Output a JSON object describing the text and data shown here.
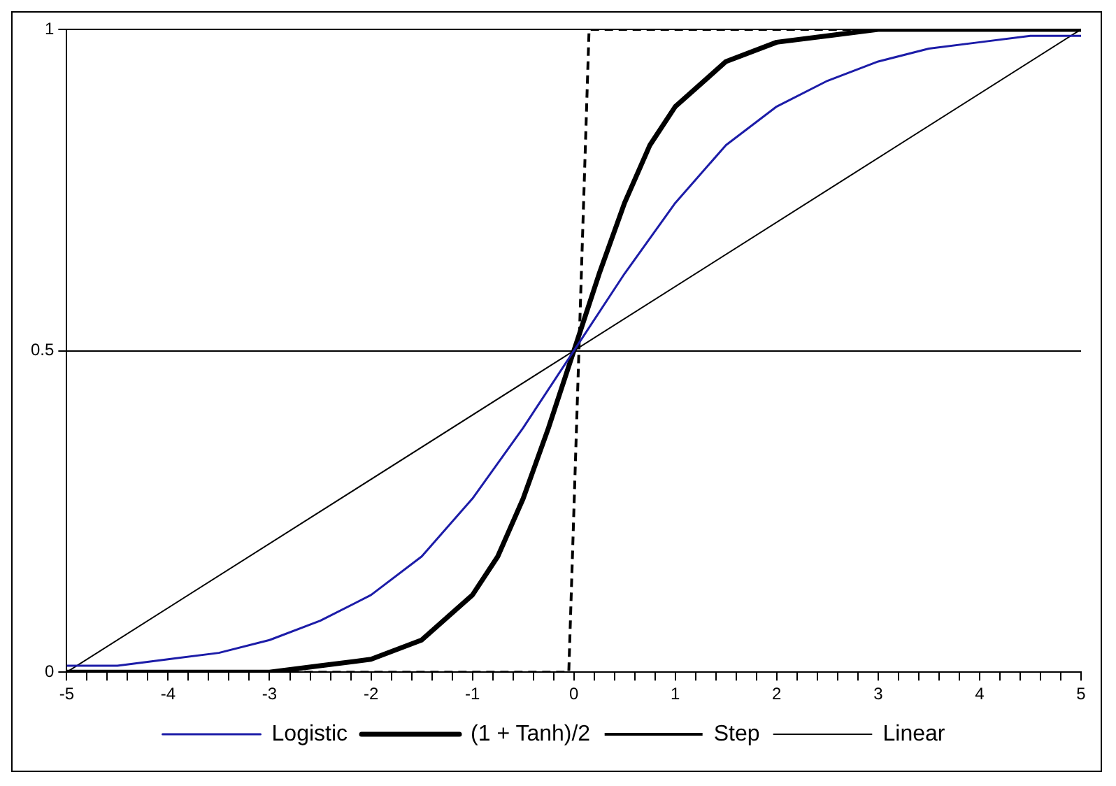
{
  "chart_data": {
    "type": "line",
    "legend": "bottom",
    "grid": "y",
    "marker": "none",
    "xlim": [
      -5,
      5
    ],
    "ylim": [
      0,
      1
    ],
    "yticks": [
      0,
      0.5,
      1
    ],
    "xticks": [
      -5,
      {
        "value": -4.8,
        "label": null
      },
      {
        "value": -4.6,
        "label": null
      },
      {
        "value": -4.4,
        "label": null
      },
      {
        "value": -4.2,
        "label": null
      },
      -4,
      {
        "value": -3.8,
        "label": null
      },
      {
        "value": -3.6,
        "label": null
      },
      {
        "value": -3.4,
        "label": null
      },
      {
        "value": -3.2,
        "label": null
      },
      -3,
      {
        "value": -2.8,
        "label": null
      },
      {
        "value": -2.6,
        "label": null
      },
      {
        "value": -2.4,
        "label": null
      },
      {
        "value": -2.2,
        "label": null
      },
      -2,
      {
        "value": -1.8,
        "label": null
      },
      {
        "value": -1.6,
        "label": null
      },
      {
        "value": -1.4,
        "label": null
      },
      {
        "value": -1.2,
        "label": null
      },
      -1,
      {
        "value": -0.8,
        "label": null
      },
      {
        "value": -0.6,
        "label": null
      },
      {
        "value": -0.4,
        "label": null
      },
      {
        "value": -0.2,
        "label": null
      },
      0,
      {
        "value": 0.2,
        "label": null
      },
      {
        "value": 0.4,
        "label": null
      },
      {
        "value": 0.6,
        "label": null
      },
      {
        "value": 0.8,
        "label": null
      },
      1,
      {
        "value": 1.2,
        "label": null
      },
      {
        "value": 1.4,
        "label": null
      },
      {
        "value": 1.6,
        "label": null
      },
      {
        "value": 1.8,
        "label": null
      },
      2,
      {
        "value": 2.2,
        "label": null
      },
      {
        "value": 2.4,
        "label": null
      },
      {
        "value": 2.6,
        "label": null
      },
      {
        "value": 2.8,
        "label": null
      },
      3,
      {
        "value": 3.2,
        "label": null
      },
      {
        "value": 3.4,
        "label": null
      },
      {
        "value": 3.6,
        "label": null
      },
      {
        "value": 3.8,
        "label": null
      },
      4,
      {
        "value": 4.2,
        "label": null
      },
      {
        "value": 4.4,
        "label": null
      },
      {
        "value": 4.6,
        "label": null
      },
      {
        "value": 4.8,
        "label": null
      },
      5
    ],
    "series": [
      {
        "name": "Logistic",
        "color": "#1c1ca8",
        "line_style": "solid",
        "x": [
          -5,
          -4.5,
          -4,
          -3.5,
          -3,
          -2.5,
          -2,
          -1.5,
          -1,
          -0.5,
          0,
          0.5,
          1,
          1.5,
          2,
          2.5,
          3,
          3.5,
          4,
          4.5,
          5
        ],
        "values": [
          0.01,
          0.01,
          0.02,
          0.03,
          0.05,
          0.08,
          0.12,
          0.18,
          0.27,
          0.38,
          0.5,
          0.62,
          0.73,
          0.82,
          0.88,
          0.92,
          0.95,
          0.97,
          0.98,
          0.99,
          0.99
        ]
      },
      {
        "name": "(1 + Tanh)/2",
        "color": "#000000",
        "line_style": "solid",
        "x": [
          -5,
          -4,
          -3,
          -2.5,
          -2,
          -1.5,
          -1,
          -0.75,
          -0.5,
          -0.25,
          0,
          0.25,
          0.5,
          0.75,
          1,
          1.5,
          2,
          2.5,
          3,
          4,
          5
        ],
        "values": [
          0,
          0,
          0,
          0.01,
          0.02,
          0.05,
          0.12,
          0.18,
          0.27,
          0.38,
          0.5,
          0.62,
          0.73,
          0.82,
          0.88,
          0.95,
          0.98,
          0.99,
          1,
          1,
          1
        ]
      },
      {
        "name": "Step",
        "color": "#000000",
        "line_style": "dashed",
        "x": [
          -5,
          -0.05,
          0.15,
          5
        ],
        "values": [
          0,
          0,
          1,
          1
        ]
      },
      {
        "name": "Linear",
        "color": "#000000",
        "line_style": "solid",
        "x": [
          -5,
          5
        ],
        "values": [
          0,
          1
        ]
      }
    ]
  }
}
